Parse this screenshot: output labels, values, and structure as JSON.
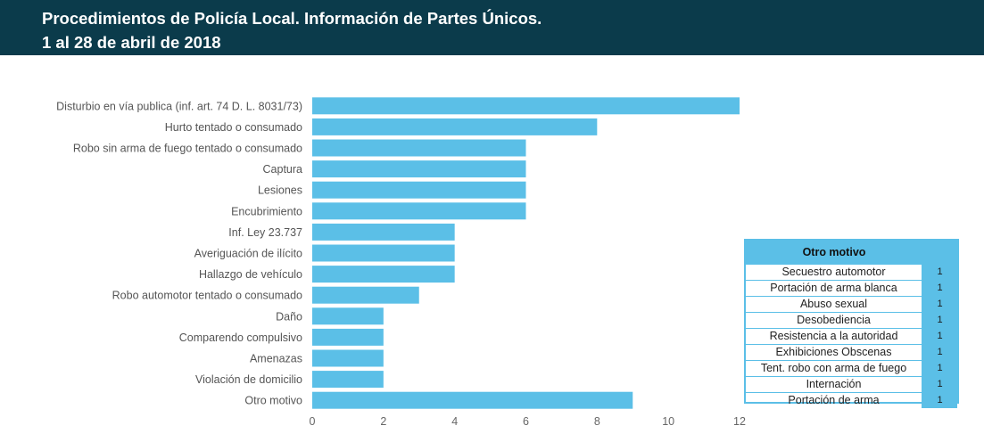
{
  "header": {
    "title": "Procedimientos de Policía Local. Información de Partes Únicos.",
    "subtitle": "1 al 28 de abril de 2018"
  },
  "colors": {
    "header_bg": "#0b3b4b",
    "bar": "#5bbfe7",
    "axis_text": "#666666",
    "label_text": "#555555"
  },
  "chart_data": {
    "type": "bar",
    "orientation": "horizontal",
    "categories": [
      "Disturbio en vía publica (inf. art. 74 D. L. 8031/73)",
      "Hurto tentado o consumado",
      "Robo sin arma de fuego tentado o consumado",
      "Captura",
      "Lesiones",
      "Encubrimiento",
      "Inf. Ley 23.737",
      "Averiguación de ilícito",
      "Hallazgo de vehículo",
      "Robo automotor tentado o consumado",
      "Daño",
      "Comparendo compulsivo",
      "Amenazas",
      "Violación de domicilio",
      "Otro motivo"
    ],
    "values": [
      12,
      8,
      6,
      6,
      6,
      6,
      4,
      4,
      4,
      3,
      2,
      2,
      2,
      2,
      9
    ],
    "xlim": [
      0,
      12
    ],
    "xticks": [
      0,
      2,
      4,
      6,
      8,
      10,
      12
    ],
    "grid": false,
    "legend": "none"
  },
  "table": {
    "title": "Otro motivo",
    "rows": [
      {
        "label": "Secuestro automotor",
        "value": "1"
      },
      {
        "label": "Portación de arma blanca",
        "value": "1"
      },
      {
        "label": "Abuso sexual",
        "value": "1"
      },
      {
        "label": "Desobediencia",
        "value": "1"
      },
      {
        "label": "Resistencia a la autoridad",
        "value": "1"
      },
      {
        "label": "Exhibiciones Obscenas",
        "value": "1"
      },
      {
        "label": "Tent. robo con arma de fuego",
        "value": "1"
      },
      {
        "label": "Internación",
        "value": "1"
      },
      {
        "label": "Portación de arma",
        "value": "1"
      }
    ]
  }
}
